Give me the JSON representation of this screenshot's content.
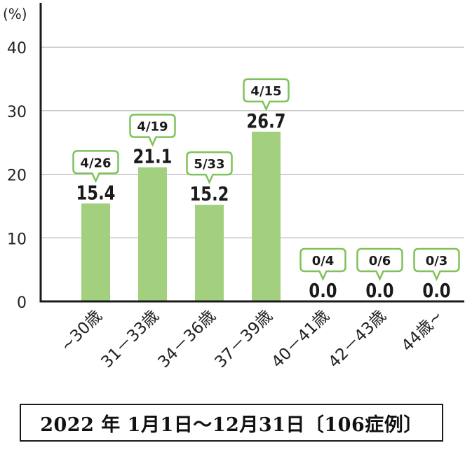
{
  "chart_data": {
    "type": "bar",
    "y_unit_label": "(%)",
    "categories": [
      "~30歳",
      "31－33歳",
      "34－36歳",
      "37－39歳",
      "40－41歳",
      "42－43歳",
      "44歳~"
    ],
    "values": [
      15.4,
      21.1,
      15.2,
      26.7,
      0.0,
      0.0,
      0.0
    ],
    "value_labels": [
      "15.4",
      "21.1",
      "15.2",
      "26.7",
      "0.0",
      "0.0",
      "0.0"
    ],
    "ratio_labels": [
      "4/26",
      "4/19",
      "5/33",
      "4/15",
      "0/4",
      "0/6",
      "0/3"
    ],
    "ylim": [
      0,
      45
    ],
    "yticks": [
      0,
      10,
      20,
      30,
      40
    ],
    "grid": true,
    "bar_color": "#a3d07f",
    "callout_border_color": "#7fc25a",
    "axis_color": "#1a1a1a",
    "grid_color": "#a8a8a8"
  },
  "caption": "2022 年 1月1日～12月31日〔106症例〕"
}
